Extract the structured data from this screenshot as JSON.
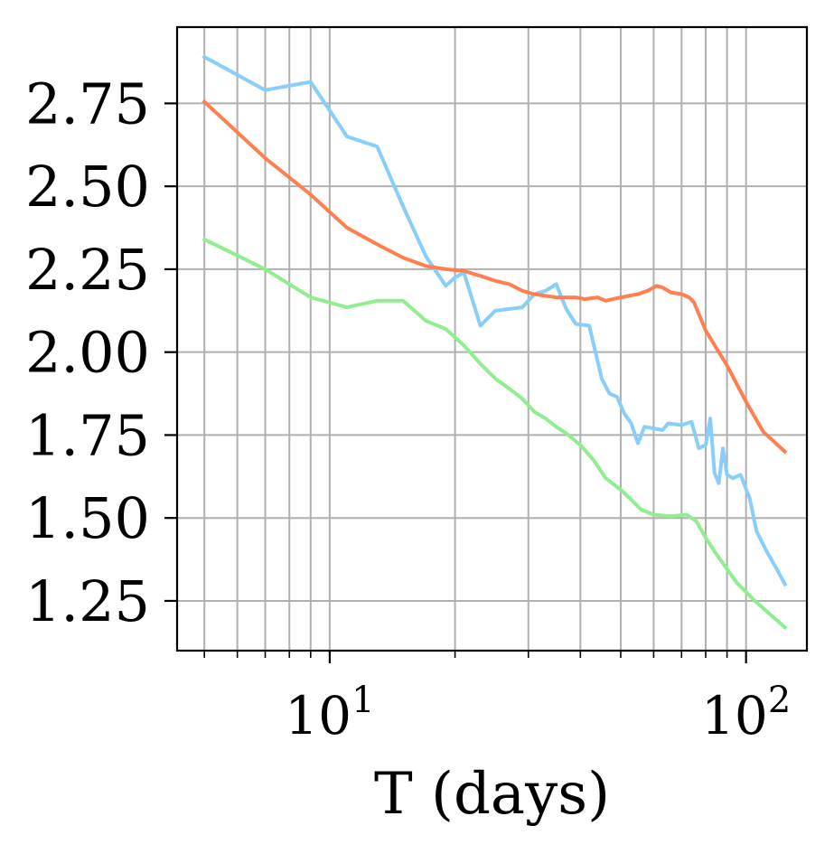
{
  "chart_data": {
    "type": "line",
    "xlabel": "T (days)",
    "ylabel": "",
    "xscale": "log",
    "xlim": [
      4.3,
      140
    ],
    "ylim": [
      1.1,
      2.98
    ],
    "grid": "on (major and minor)",
    "xticks": [
      {
        "value": 10,
        "base": "10",
        "exp": "1"
      },
      {
        "value": 100,
        "base": "10",
        "exp": "2"
      }
    ],
    "yticks": [
      {
        "value": 1.25,
        "label": "1.25"
      },
      {
        "value": 1.5,
        "label": "1.50"
      },
      {
        "value": 1.75,
        "label": "1.75"
      },
      {
        "value": 2.0,
        "label": "2.00"
      },
      {
        "value": 2.25,
        "label": "2.25"
      },
      {
        "value": 2.5,
        "label": "2.50"
      },
      {
        "value": 2.75,
        "label": "2.75"
      }
    ],
    "series": [
      {
        "color": "#87CEFA",
        "points": [
          [
            5,
            2.89
          ],
          [
            7,
            2.79
          ],
          [
            9,
            2.815
          ],
          [
            11,
            2.65
          ],
          [
            13,
            2.62
          ],
          [
            15,
            2.44
          ],
          [
            17,
            2.29
          ],
          [
            19,
            2.2
          ],
          [
            20,
            2.225
          ],
          [
            21,
            2.24
          ],
          [
            23,
            2.08
          ],
          [
            25,
            2.125
          ],
          [
            29,
            2.135
          ],
          [
            31,
            2.175
          ],
          [
            33,
            2.185
          ],
          [
            35,
            2.205
          ],
          [
            37,
            2.13
          ],
          [
            39,
            2.085
          ],
          [
            42,
            2.08
          ],
          [
            45,
            1.92
          ],
          [
            47,
            1.875
          ],
          [
            49,
            1.865
          ],
          [
            51,
            1.815
          ],
          [
            53,
            1.785
          ],
          [
            55,
            1.725
          ],
          [
            57,
            1.775
          ],
          [
            60,
            1.77
          ],
          [
            63,
            1.765
          ],
          [
            65,
            1.785
          ],
          [
            70,
            1.78
          ],
          [
            74,
            1.79
          ],
          [
            77,
            1.71
          ],
          [
            80,
            1.72
          ],
          [
            82,
            1.8
          ],
          [
            84,
            1.635
          ],
          [
            86,
            1.605
          ],
          [
            88,
            1.71
          ],
          [
            90,
            1.63
          ],
          [
            93,
            1.62
          ],
          [
            97,
            1.63
          ],
          [
            102,
            1.56
          ],
          [
            106,
            1.46
          ],
          [
            112,
            1.4
          ],
          [
            118,
            1.35
          ],
          [
            124,
            1.3
          ]
        ]
      },
      {
        "color": "#FF7F50",
        "points": [
          [
            5,
            2.755
          ],
          [
            7,
            2.585
          ],
          [
            9,
            2.475
          ],
          [
            11,
            2.375
          ],
          [
            13,
            2.325
          ],
          [
            15,
            2.285
          ],
          [
            17,
            2.26
          ],
          [
            19,
            2.25
          ],
          [
            21,
            2.245
          ],
          [
            23,
            2.23
          ],
          [
            25,
            2.215
          ],
          [
            27,
            2.205
          ],
          [
            29,
            2.185
          ],
          [
            31,
            2.175
          ],
          [
            35,
            2.165
          ],
          [
            39,
            2.165
          ],
          [
            41,
            2.16
          ],
          [
            44,
            2.165
          ],
          [
            46,
            2.155
          ],
          [
            50,
            2.165
          ],
          [
            55,
            2.175
          ],
          [
            58,
            2.185
          ],
          [
            61,
            2.2
          ],
          [
            63,
            2.195
          ],
          [
            66,
            2.18
          ],
          [
            70,
            2.175
          ],
          [
            73,
            2.165
          ],
          [
            75,
            2.15
          ],
          [
            80,
            2.065
          ],
          [
            90,
            1.96
          ],
          [
            100,
            1.85
          ],
          [
            110,
            1.76
          ],
          [
            124,
            1.7
          ]
        ]
      },
      {
        "color": "#90EE90",
        "points": [
          [
            5,
            2.34
          ],
          [
            7,
            2.25
          ],
          [
            9,
            2.165
          ],
          [
            11,
            2.135
          ],
          [
            13,
            2.155
          ],
          [
            15,
            2.155
          ],
          [
            17,
            2.095
          ],
          [
            19,
            2.07
          ],
          [
            21,
            2.02
          ],
          [
            23,
            1.965
          ],
          [
            25,
            1.92
          ],
          [
            27,
            1.89
          ],
          [
            29,
            1.86
          ],
          [
            31,
            1.82
          ],
          [
            33,
            1.8
          ],
          [
            35,
            1.775
          ],
          [
            37,
            1.755
          ],
          [
            40,
            1.72
          ],
          [
            43,
            1.675
          ],
          [
            46,
            1.62
          ],
          [
            50,
            1.585
          ],
          [
            53,
            1.555
          ],
          [
            56,
            1.525
          ],
          [
            60,
            1.51
          ],
          [
            66,
            1.505
          ],
          [
            72,
            1.51
          ],
          [
            76,
            1.49
          ],
          [
            80,
            1.44
          ],
          [
            85,
            1.39
          ],
          [
            95,
            1.305
          ],
          [
            105,
            1.25
          ],
          [
            124,
            1.17
          ]
        ]
      }
    ]
  }
}
